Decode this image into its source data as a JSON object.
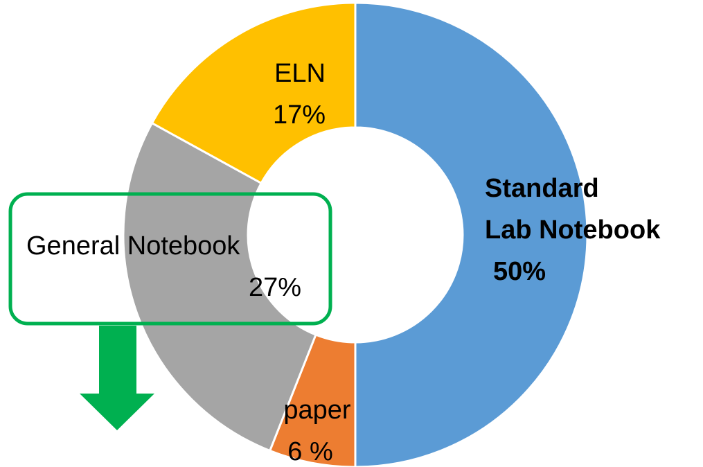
{
  "chart_data": {
    "type": "donut",
    "categories": [
      "Standard\nLab Notebook",
      "paper",
      "General Notebook",
      "ELN"
    ],
    "values": [
      50,
      6,
      27,
      17
    ],
    "value_labels": [
      "50%",
      "6 %",
      "27%",
      "17%"
    ],
    "colors": [
      "#5b9bd5",
      "#ed7d31",
      "#a5a5a5",
      "#ffc000"
    ]
  }
}
